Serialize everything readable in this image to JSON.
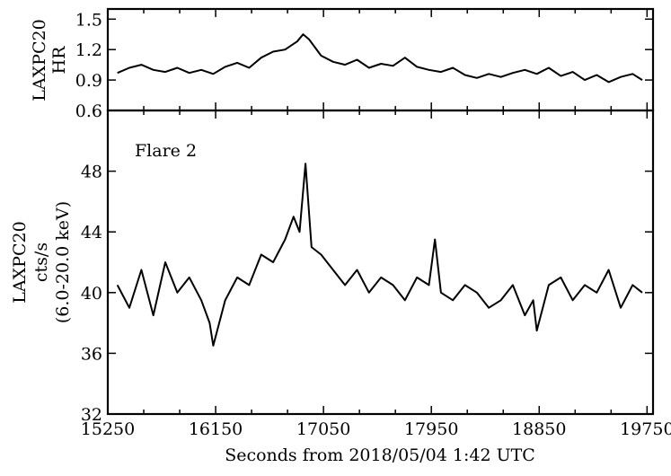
{
  "chart_data": [
    {
      "type": "line",
      "panel": "top",
      "ylabel_lines": [
        "LAXPC20",
        "HR"
      ],
      "xlim": [
        15250,
        19800
      ],
      "ylim": [
        0.6,
        1.6
      ],
      "yticks": [
        0.6,
        0.9,
        1.2,
        1.5
      ],
      "ytick_labels": [
        "0.6",
        "0.9",
        "1.2",
        "1.5"
      ],
      "xticks": [
        15250,
        16150,
        17050,
        17950,
        18850,
        19750
      ],
      "series": [
        {
          "x": [
            15330,
            15430,
            15530,
            15630,
            15730,
            15830,
            15930,
            16030,
            16130,
            16230,
            16330,
            16430,
            16530,
            16630,
            16730,
            16830,
            16880,
            16930,
            17030,
            17130,
            17230,
            17330,
            17430,
            17530,
            17630,
            17730,
            17830,
            17930,
            18030,
            18130,
            18230,
            18330,
            18430,
            18530,
            18630,
            18730,
            18830,
            18930,
            19030,
            19130,
            19230,
            19330,
            19430,
            19530,
            19630,
            19710
          ],
          "y": [
            0.97,
            1.02,
            1.05,
            1.0,
            0.98,
            1.02,
            0.97,
            1.0,
            0.96,
            1.03,
            1.07,
            1.02,
            1.12,
            1.18,
            1.2,
            1.28,
            1.35,
            1.3,
            1.14,
            1.08,
            1.05,
            1.1,
            1.02,
            1.06,
            1.04,
            1.12,
            1.03,
            1.0,
            0.98,
            1.02,
            0.95,
            0.92,
            0.96,
            0.93,
            0.97,
            1.0,
            0.96,
            1.02,
            0.94,
            0.98,
            0.9,
            0.95,
            0.88,
            0.93,
            0.96,
            0.9
          ]
        }
      ]
    },
    {
      "type": "line",
      "panel": "bottom",
      "title": "Flare 2",
      "ylabel_lines": [
        "LAXPC20",
        "cts/s",
        "(6.0-20.0 keV)"
      ],
      "xlabel": "Seconds from 2018/05/04 1:42 UTC",
      "xlim": [
        15250,
        19800
      ],
      "ylim": [
        32,
        52
      ],
      "yticks": [
        32,
        36,
        40,
        44,
        48
      ],
      "ytick_labels": [
        "32",
        "36",
        "40",
        "44",
        "48"
      ],
      "xticks": [
        15250,
        16150,
        17050,
        17950,
        18850,
        19750
      ],
      "xtick_labels": [
        "15250",
        "16150",
        "17050",
        "17950",
        "18850",
        "19750"
      ],
      "series": [
        {
          "x": [
            15330,
            15430,
            15530,
            15630,
            15730,
            15830,
            15930,
            16030,
            16100,
            16130,
            16230,
            16330,
            16430,
            16530,
            16630,
            16730,
            16800,
            16850,
            16900,
            16950,
            17030,
            17130,
            17230,
            17330,
            17430,
            17530,
            17630,
            17730,
            17830,
            17930,
            17980,
            18030,
            18130,
            18230,
            18330,
            18430,
            18530,
            18630,
            18730,
            18800,
            18830,
            18930,
            19030,
            19130,
            19230,
            19330,
            19430,
            19530,
            19630,
            19710
          ],
          "y": [
            40.5,
            39.0,
            41.5,
            38.5,
            42.0,
            40.0,
            41.0,
            39.5,
            38.0,
            36.5,
            39.5,
            41.0,
            40.5,
            42.5,
            42.0,
            43.5,
            45.0,
            44.0,
            48.5,
            43.0,
            42.5,
            41.5,
            40.5,
            41.5,
            40.0,
            41.0,
            40.5,
            39.5,
            41.0,
            40.5,
            43.5,
            40.0,
            39.5,
            40.5,
            40.0,
            39.0,
            39.5,
            40.5,
            38.5,
            39.5,
            37.5,
            40.5,
            41.0,
            39.5,
            40.5,
            40.0,
            41.5,
            39.0,
            40.5,
            40.0
          ]
        }
      ]
    }
  ]
}
